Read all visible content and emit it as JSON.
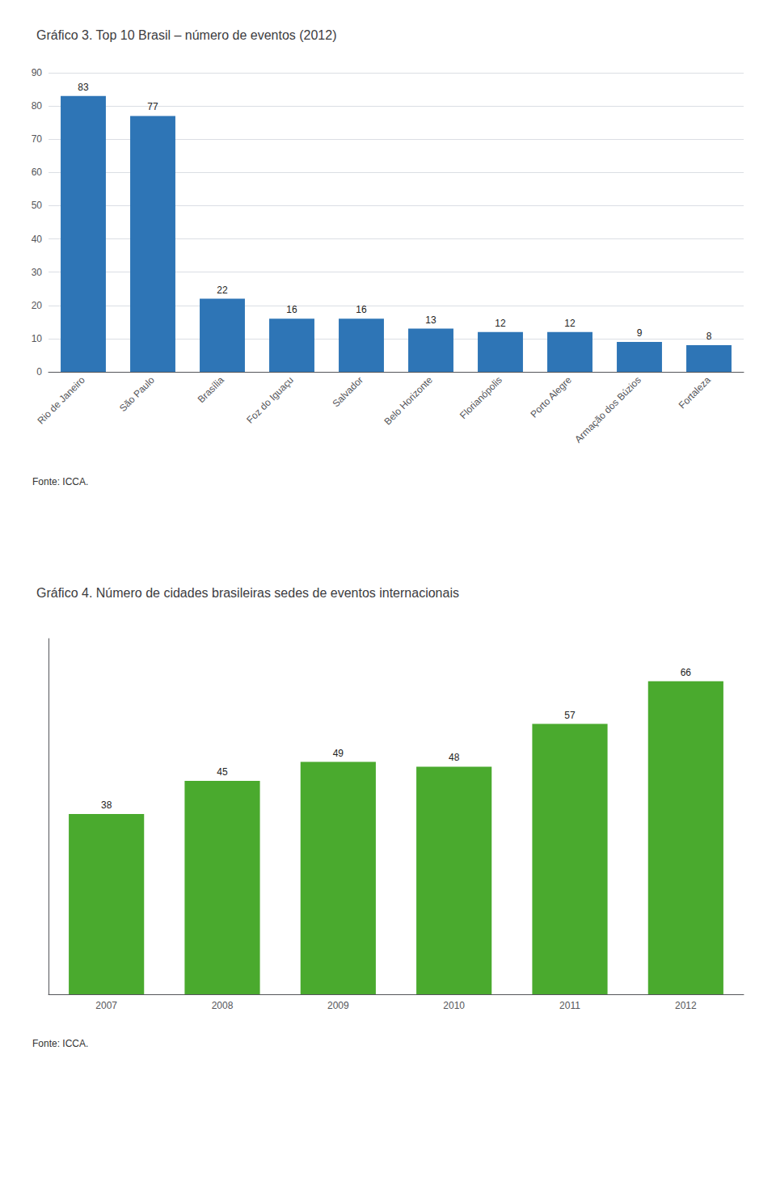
{
  "chart_data": [
    {
      "type": "bar",
      "title": "Gráfico 3. Top 10 Brasil – número de eventos (2012)",
      "annotations": [
        "Fonte: ICCA."
      ],
      "categories": [
        "Rio de Janeiro",
        "São Paulo",
        "Brasília",
        "Foz do Iguaçu",
        "Salvador",
        "Belo Horizonte",
        "Florianópolis",
        "Porto Alegre",
        "Armação dos Búzios",
        "Fortaleza"
      ],
      "values": [
        83,
        77,
        22,
        16,
        16,
        13,
        12,
        12,
        9,
        8
      ],
      "color": "#2e75b6",
      "ylim": [
        0,
        90
      ],
      "yticks": [
        0,
        10,
        20,
        30,
        40,
        50,
        60,
        70,
        80,
        90
      ],
      "grid": true,
      "data_labels": true
    },
    {
      "type": "bar",
      "title": "Gráfico 4. Número de cidades brasileiras sedes de eventos internacionais",
      "annotations": [
        "Fonte: ICCA."
      ],
      "categories": [
        "2007",
        "2008",
        "2009",
        "2010",
        "2011",
        "2012"
      ],
      "values": [
        38,
        45,
        49,
        48,
        57,
        66
      ],
      "color": "#4aaa2e",
      "ylim": [
        0,
        75
      ],
      "grid": false,
      "data_labels": true,
      "tick_labels": "x"
    }
  ]
}
